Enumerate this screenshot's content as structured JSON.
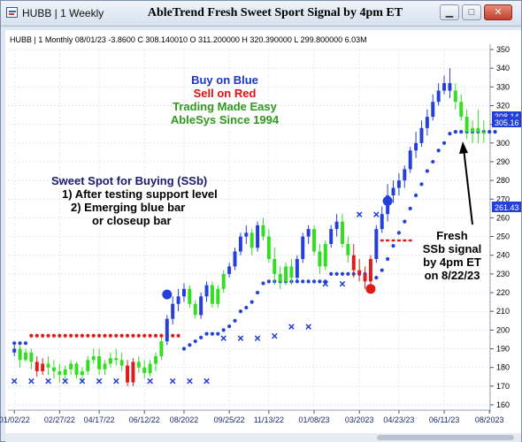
{
  "window": {
    "label": "HUBB | 1 Weekly",
    "title": "AbleTrend Fresh Sweet Sport Signal by 4pm ET",
    "minimize": "▁",
    "maximize": "□",
    "close": "✕"
  },
  "info_line": "HUBB | 1 Monthly 08/01/23 -3.8600 C 308.140010 O 311.200000 H 320.390000 L 299.800000 6.03M",
  "annotations": {
    "legend": [
      {
        "text": "Buy on Blue",
        "color": "#1a35c8"
      },
      {
        "text": "Sell on Red",
        "color": "#e01010"
      },
      {
        "text": "Trading Made Easy",
        "color": "#2e9a1a"
      },
      {
        "text": "AbleSys Since 1994",
        "color": "#2e9a1a"
      }
    ],
    "sweet_spot": [
      "Sweet Spot for Buying (SSb)",
      "1) After testing support level",
      "2) Emerging blue bar",
      "or closeup bar"
    ],
    "fresh": [
      "Fresh",
      "SSb signal",
      "by 4pm ET",
      "on 8/22/23"
    ]
  },
  "price_labels": {
    "current": "305.16",
    "current_behind": "308.14",
    "stop": "261.43"
  },
  "colors": {
    "up": "#2540d8",
    "down": "#e11a1a",
    "neutral": "#33dd22",
    "stop_x": "#1a35d0",
    "price_tag": "#2540d8"
  },
  "chart_data": {
    "type": "candlestick",
    "ylim": [
      160,
      350
    ],
    "yticks": [
      160,
      170,
      180,
      190,
      200,
      210,
      220,
      230,
      240,
      250,
      260,
      270,
      280,
      290,
      300,
      310,
      320,
      330,
      340,
      350
    ],
    "xtick_labels": [
      "01/02/22",
      "02/27/22",
      "04/17/22",
      "06/12/22",
      "08/2022",
      "09/25/22",
      "11/13/22",
      "01/08/23",
      "03/2023",
      "04/23/23",
      "06/11/23",
      "08/2023"
    ],
    "xtick_index": [
      0,
      8,
      15,
      23,
      30,
      38,
      45,
      53,
      61,
      68,
      76,
      84
    ],
    "bars": [
      [
        188,
        192,
        186,
        190,
        "b"
      ],
      [
        190,
        192,
        180,
        184,
        "g"
      ],
      [
        184,
        190,
        183,
        188,
        "g"
      ],
      [
        188,
        190,
        179,
        183,
        "g"
      ],
      [
        183,
        186,
        175,
        178,
        "r"
      ],
      [
        178,
        185,
        176,
        182,
        "r"
      ],
      [
        182,
        186,
        176,
        180,
        "g"
      ],
      [
        180,
        184,
        174,
        178,
        "g"
      ],
      [
        178,
        182,
        172,
        176,
        "g"
      ],
      [
        176,
        181,
        173,
        179,
        "g"
      ],
      [
        179,
        184,
        176,
        182,
        "g"
      ],
      [
        182,
        183,
        174,
        176,
        "g"
      ],
      [
        176,
        180,
        172,
        178,
        "g"
      ],
      [
        178,
        186,
        176,
        184,
        "g"
      ],
      [
        184,
        190,
        182,
        186,
        "g"
      ],
      [
        186,
        190,
        176,
        179,
        "g"
      ],
      [
        179,
        184,
        176,
        182,
        "g"
      ],
      [
        182,
        188,
        180,
        185,
        "g"
      ],
      [
        185,
        190,
        181,
        184,
        "g"
      ],
      [
        184,
        188,
        178,
        181,
        "g"
      ],
      [
        181,
        184,
        170,
        172,
        "r"
      ],
      [
        172,
        185,
        170,
        183,
        "r"
      ],
      [
        183,
        186,
        177,
        180,
        "g"
      ],
      [
        180,
        184,
        174,
        177,
        "g"
      ],
      [
        177,
        184,
        175,
        182,
        "g"
      ],
      [
        182,
        188,
        178,
        186,
        "g"
      ],
      [
        186,
        196,
        184,
        194,
        "g"
      ],
      [
        194,
        208,
        192,
        206,
        "b"
      ],
      [
        206,
        218,
        203,
        214,
        "b"
      ],
      [
        214,
        222,
        210,
        218,
        "b"
      ],
      [
        218,
        225,
        215,
        222,
        "b"
      ],
      [
        222,
        224,
        212,
        214,
        "g"
      ],
      [
        214,
        216,
        206,
        208,
        "g"
      ],
      [
        208,
        220,
        206,
        218,
        "b"
      ],
      [
        218,
        226,
        215,
        224,
        "b"
      ],
      [
        224,
        226,
        212,
        214,
        "g"
      ],
      [
        214,
        224,
        212,
        222,
        "g"
      ],
      [
        222,
        232,
        220,
        230,
        "g"
      ],
      [
        230,
        236,
        228,
        234,
        "b"
      ],
      [
        234,
        244,
        232,
        242,
        "b"
      ],
      [
        242,
        252,
        240,
        250,
        "b"
      ],
      [
        250,
        256,
        246,
        252,
        "b"
      ],
      [
        252,
        254,
        240,
        244,
        "g"
      ],
      [
        244,
        258,
        242,
        256,
        "b"
      ],
      [
        256,
        260,
        248,
        250,
        "g"
      ],
      [
        250,
        254,
        236,
        238,
        "g"
      ],
      [
        238,
        244,
        224,
        230,
        "g"
      ],
      [
        230,
        234,
        222,
        226,
        "g"
      ],
      [
        226,
        236,
        224,
        234,
        "g"
      ],
      [
        234,
        238,
        224,
        228,
        "g"
      ],
      [
        228,
        240,
        226,
        238,
        "b"
      ],
      [
        238,
        252,
        236,
        250,
        "b"
      ],
      [
        250,
        256,
        246,
        254,
        "b"
      ],
      [
        254,
        256,
        240,
        242,
        "g"
      ],
      [
        242,
        246,
        230,
        234,
        "g"
      ],
      [
        234,
        248,
        232,
        246,
        "g"
      ],
      [
        246,
        256,
        244,
        254,
        "b"
      ],
      [
        254,
        262,
        250,
        258,
        "b"
      ],
      [
        258,
        262,
        244,
        246,
        "g"
      ],
      [
        246,
        250,
        236,
        240,
        "g"
      ],
      [
        240,
        246,
        228,
        232,
        "r"
      ],
      [
        232,
        238,
        226,
        230,
        "r"
      ],
      [
        230,
        234,
        222,
        226,
        "r"
      ],
      [
        226,
        240,
        222,
        238,
        "r"
      ],
      [
        238,
        256,
        236,
        254,
        "b"
      ],
      [
        254,
        266,
        252,
        262,
        "b"
      ],
      [
        262,
        278,
        258,
        272,
        "b"
      ],
      [
        272,
        280,
        268,
        276,
        "b"
      ],
      [
        276,
        284,
        272,
        280,
        "b"
      ],
      [
        280,
        288,
        276,
        286,
        "b"
      ],
      [
        286,
        298,
        284,
        296,
        "b"
      ],
      [
        296,
        306,
        292,
        300,
        "b"
      ],
      [
        300,
        312,
        298,
        308,
        "b"
      ],
      [
        308,
        318,
        304,
        314,
        "b"
      ],
      [
        314,
        326,
        312,
        322,
        "b"
      ],
      [
        322,
        332,
        320,
        328,
        "b"
      ],
      [
        328,
        336,
        326,
        332,
        "b"
      ],
      [
        332,
        340,
        324,
        328,
        "b"
      ],
      [
        328,
        332,
        318,
        322,
        "g"
      ],
      [
        322,
        326,
        312,
        314,
        "g"
      ],
      [
        314,
        318,
        302,
        306,
        "g"
      ],
      [
        306,
        312,
        300,
        308,
        "g"
      ],
      [
        308,
        318,
        300,
        306,
        "g"
      ],
      [
        306,
        312,
        300,
        305,
        "g"
      ]
    ],
    "stop_line": [
      [
        0,
        193,
        "b"
      ],
      [
        1,
        193,
        "b"
      ],
      [
        2,
        193,
        "b"
      ],
      [
        3,
        197,
        "r"
      ],
      [
        4,
        197,
        "r"
      ],
      [
        5,
        197,
        "r"
      ],
      [
        6,
        197,
        "r"
      ],
      [
        7,
        197,
        "r"
      ],
      [
        8,
        197,
        "r"
      ],
      [
        9,
        197,
        "r"
      ],
      [
        10,
        197,
        "r"
      ],
      [
        11,
        197,
        "r"
      ],
      [
        12,
        197,
        "r"
      ],
      [
        13,
        197,
        "r"
      ],
      [
        14,
        197,
        "r"
      ],
      [
        15,
        197,
        "r"
      ],
      [
        16,
        197,
        "r"
      ],
      [
        17,
        197,
        "r"
      ],
      [
        18,
        197,
        "r"
      ],
      [
        19,
        197,
        "r"
      ],
      [
        20,
        197,
        "r"
      ],
      [
        21,
        197,
        "r"
      ],
      [
        22,
        197,
        "r"
      ],
      [
        23,
        197,
        "r"
      ],
      [
        24,
        197,
        "r"
      ],
      [
        25,
        197,
        "r"
      ],
      [
        26,
        197,
        "r"
      ],
      [
        27,
        197,
        "r"
      ],
      [
        28,
        197,
        "r"
      ],
      [
        29,
        197,
        "r"
      ],
      [
        30,
        190,
        "b"
      ],
      [
        31,
        192,
        "b"
      ],
      [
        32,
        194,
        "b"
      ],
      [
        33,
        196,
        "b"
      ],
      [
        34,
        198,
        "b"
      ],
      [
        35,
        198,
        "b"
      ],
      [
        36,
        198,
        "b"
      ],
      [
        37,
        200,
        "b"
      ],
      [
        38,
        202,
        "b"
      ],
      [
        39,
        205,
        "b"
      ],
      [
        40,
        210,
        "b"
      ],
      [
        41,
        212,
        "b"
      ],
      [
        42,
        215,
        "b"
      ],
      [
        43,
        220,
        "b"
      ],
      [
        44,
        225,
        "b"
      ],
      [
        45,
        226,
        "b"
      ],
      [
        46,
        226,
        "b"
      ],
      [
        47,
        226,
        "b"
      ],
      [
        48,
        226,
        "b"
      ],
      [
        49,
        226,
        "b"
      ],
      [
        50,
        226,
        "b"
      ],
      [
        51,
        226,
        "b"
      ],
      [
        52,
        226,
        "b"
      ],
      [
        53,
        226,
        "b"
      ],
      [
        54,
        226,
        "b"
      ],
      [
        55,
        226,
        "b"
      ],
      [
        56,
        230,
        "b"
      ],
      [
        57,
        230,
        "b"
      ],
      [
        58,
        230,
        "b"
      ],
      [
        59,
        230,
        "b"
      ],
      [
        60,
        230,
        "b"
      ],
      [
        61,
        230,
        "b"
      ],
      [
        62,
        230,
        "b"
      ],
      [
        63,
        230,
        "b"
      ],
      [
        64,
        228,
        "b"
      ],
      [
        65,
        232,
        "b"
      ],
      [
        66,
        238,
        "b"
      ],
      [
        67,
        245,
        "b"
      ],
      [
        68,
        252,
        "b"
      ],
      [
        69,
        258,
        "b"
      ],
      [
        70,
        265,
        "b"
      ],
      [
        71,
        272,
        "b"
      ],
      [
        72,
        278,
        "b"
      ],
      [
        73,
        285,
        "b"
      ],
      [
        74,
        290,
        "b"
      ],
      [
        75,
        296,
        "b"
      ],
      [
        76,
        300,
        "b"
      ],
      [
        77,
        305,
        "b"
      ],
      [
        78,
        306,
        "b"
      ],
      [
        79,
        306,
        "b"
      ],
      [
        80,
        306,
        "b"
      ],
      [
        81,
        306,
        "b"
      ],
      [
        82,
        306,
        "b"
      ],
      [
        83,
        306,
        "b"
      ],
      [
        84,
        306,
        "b"
      ],
      [
        85,
        306,
        "b"
      ]
    ],
    "red_dash": [
      [
        65,
        70,
        248
      ]
    ],
    "stop_x": [
      [
        0,
        173
      ],
      [
        3,
        173
      ],
      [
        6,
        173
      ],
      [
        9,
        173
      ],
      [
        12,
        173
      ],
      [
        15,
        173
      ],
      [
        18,
        173
      ],
      [
        24,
        173
      ],
      [
        28,
        173
      ],
      [
        31,
        173
      ],
      [
        34,
        173
      ],
      [
        37,
        196
      ],
      [
        40,
        196
      ],
      [
        43,
        196
      ],
      [
        46,
        197
      ],
      [
        49,
        202
      ],
      [
        52,
        202
      ],
      [
        55,
        225
      ],
      [
        58,
        225
      ],
      [
        61,
        262
      ],
      [
        64,
        262
      ]
    ],
    "circles": [
      [
        27,
        219,
        "b"
      ],
      [
        63,
        222,
        "r"
      ],
      [
        66,
        269,
        "b"
      ]
    ]
  }
}
